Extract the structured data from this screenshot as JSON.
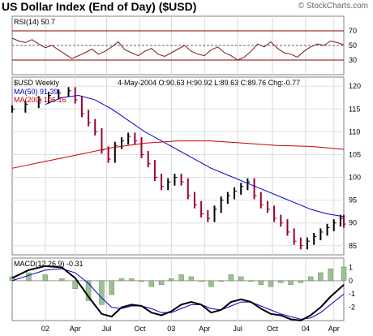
{
  "title": "US Dollar Index (End of Day) ($USD)",
  "brand": "© StockCharts.com",
  "chart_data": [
    {
      "type": "line",
      "panel": "RSI",
      "label": "RSI(14)",
      "last_value": "50.7",
      "y_ticks": [
        70,
        50,
        30
      ],
      "reference_lines": [
        70,
        50,
        30
      ],
      "ylim": [
        10,
        90
      ],
      "x_range": [
        0,
        100
      ],
      "series": [
        {
          "name": "RSI(14)",
          "color": "#7a1a1a",
          "x": [
            0,
            2,
            4,
            6,
            8,
            10,
            12,
            14,
            16,
            18,
            20,
            22,
            24,
            26,
            28,
            30,
            32,
            34,
            36,
            38,
            40,
            42,
            44,
            46,
            48,
            50,
            52,
            54,
            56,
            58,
            60,
            62,
            64,
            66,
            68,
            70,
            72,
            74,
            76,
            78,
            80,
            82,
            84,
            86,
            88,
            90,
            92,
            94,
            96,
            98,
            100
          ],
          "y": [
            60,
            56,
            54,
            58,
            52,
            47,
            50,
            44,
            38,
            32,
            36,
            40,
            45,
            38,
            42,
            48,
            55,
            44,
            40,
            36,
            42,
            46,
            38,
            35,
            40,
            45,
            50,
            42,
            38,
            36,
            44,
            48,
            40,
            36,
            30,
            34,
            42,
            52,
            48,
            55,
            46,
            40,
            38,
            34,
            42,
            48,
            52,
            50,
            56,
            54,
            50.7
          ]
        }
      ]
    },
    {
      "type": "bar",
      "panel": "price",
      "label": "$USD Weekly",
      "info": {
        "date": "4-May-2004",
        "O": "O:90.63",
        "H": "H:90.92",
        "L": "L:89.63",
        "C": "C:89.76",
        "Chg": "Chg:-0.77"
      },
      "legend": [
        {
          "name": "MA(50)",
          "value": "91.39",
          "color": "#0000cc"
        },
        {
          "name": "MA(200)",
          "value": "106.16",
          "color": "#cc0000"
        }
      ],
      "y_ticks": [
        120,
        115,
        110,
        105,
        100,
        95,
        90,
        85
      ],
      "ylim": [
        83,
        122
      ],
      "x_range": [
        0,
        100
      ],
      "x_ticks": [
        {
          "label": "02",
          "x": 10
        },
        {
          "label": "Apr",
          "x": 19
        },
        {
          "label": "Jul",
          "x": 28.5
        },
        {
          "label": "Oct",
          "x": 38.5
        },
        {
          "label": "03",
          "x": 48
        },
        {
          "label": "Apr",
          "x": 58
        },
        {
          "label": "Jul",
          "x": 68
        },
        {
          "label": "Oct",
          "x": 78.5
        },
        {
          "label": "04",
          "x": 88.5
        },
        {
          "label": "Apr",
          "x": 97
        }
      ],
      "series": [
        {
          "name": "$USD",
          "x": [
            0,
            4,
            8,
            11,
            14,
            17,
            19,
            21,
            23,
            25,
            27,
            29,
            31,
            33,
            35,
            37,
            39,
            41,
            43,
            45,
            47,
            49,
            51,
            53,
            55,
            57,
            59,
            61,
            63,
            65,
            67,
            69,
            71,
            73,
            75,
            77,
            79,
            81,
            83,
            85,
            87,
            89,
            91,
            93,
            95,
            97,
            99,
            100
          ],
          "y": [
            115,
            116,
            117,
            118,
            118.5,
            119,
            117,
            114,
            112,
            110,
            106,
            104,
            107,
            108,
            109,
            108,
            105,
            103,
            100,
            98,
            99,
            100,
            99,
            96,
            94,
            92,
            91,
            93,
            95,
            96,
            97,
            98,
            99,
            96,
            94,
            93,
            91,
            90,
            88,
            86,
            85,
            86,
            87,
            88,
            89,
            90,
            91,
            89.76
          ]
        },
        {
          "name": "MA(50)",
          "color": "#0000cc",
          "x": [
            10,
            15,
            20,
            25,
            30,
            35,
            40,
            45,
            50,
            55,
            60,
            65,
            70,
            75,
            80,
            85,
            90,
            95,
            100
          ],
          "y": [
            116,
            117.5,
            118,
            117,
            115,
            112.5,
            110,
            108,
            106,
            104,
            102,
            100.5,
            99,
            97.5,
            96,
            94.5,
            93,
            92,
            91.39
          ]
        },
        {
          "name": "MA(200)",
          "color": "#cc0000",
          "x": [
            0,
            10,
            20,
            30,
            40,
            50,
            60,
            70,
            80,
            90,
            100
          ],
          "y": [
            102,
            103.5,
            105,
            106.5,
            107.5,
            108,
            108,
            107.5,
            107,
            106.8,
            106.16
          ]
        }
      ]
    },
    {
      "type": "bar",
      "panel": "MACD",
      "label": "MACD(12,26,9)",
      "last_value": "-0.31",
      "y_ticks": [
        1,
        0,
        -1,
        -2
      ],
      "ylim": [
        -3,
        1.7
      ],
      "x_range": [
        0,
        100
      ],
      "series": [
        {
          "name": "MACD",
          "color": "#000000",
          "x": [
            0,
            5,
            10,
            15,
            19,
            23,
            27,
            30,
            33,
            36,
            39,
            42,
            45,
            48,
            51,
            54,
            57,
            60,
            63,
            66,
            69,
            72,
            75,
            78,
            81,
            84,
            87,
            90,
            93,
            96,
            100
          ],
          "y": [
            0.2,
            0.8,
            1.1,
            1.0,
            0.2,
            -1.2,
            -2.5,
            -2.7,
            -2.0,
            -1.8,
            -1.9,
            -2.4,
            -2.6,
            -2.3,
            -1.8,
            -1.6,
            -1.8,
            -2.4,
            -2.2,
            -1.6,
            -1.4,
            -1.6,
            -2.1,
            -2.5,
            -2.6,
            -2.9,
            -3.0,
            -2.6,
            -2.0,
            -1.2,
            -0.31
          ]
        },
        {
          "name": "Signal",
          "color": "#0000cc",
          "x": [
            0,
            5,
            10,
            15,
            19,
            23,
            27,
            30,
            33,
            36,
            39,
            42,
            45,
            48,
            51,
            54,
            57,
            60,
            63,
            66,
            69,
            72,
            75,
            78,
            81,
            84,
            87,
            90,
            93,
            96,
            100
          ],
          "y": [
            0.0,
            0.4,
            0.8,
            0.9,
            0.6,
            -0.2,
            -1.3,
            -2.0,
            -2.1,
            -1.9,
            -1.9,
            -2.1,
            -2.4,
            -2.4,
            -2.1,
            -1.8,
            -1.8,
            -2.1,
            -2.2,
            -1.9,
            -1.6,
            -1.6,
            -1.9,
            -2.2,
            -2.5,
            -2.7,
            -2.9,
            -2.8,
            -2.4,
            -1.8,
            -1.0
          ]
        }
      ]
    }
  ]
}
